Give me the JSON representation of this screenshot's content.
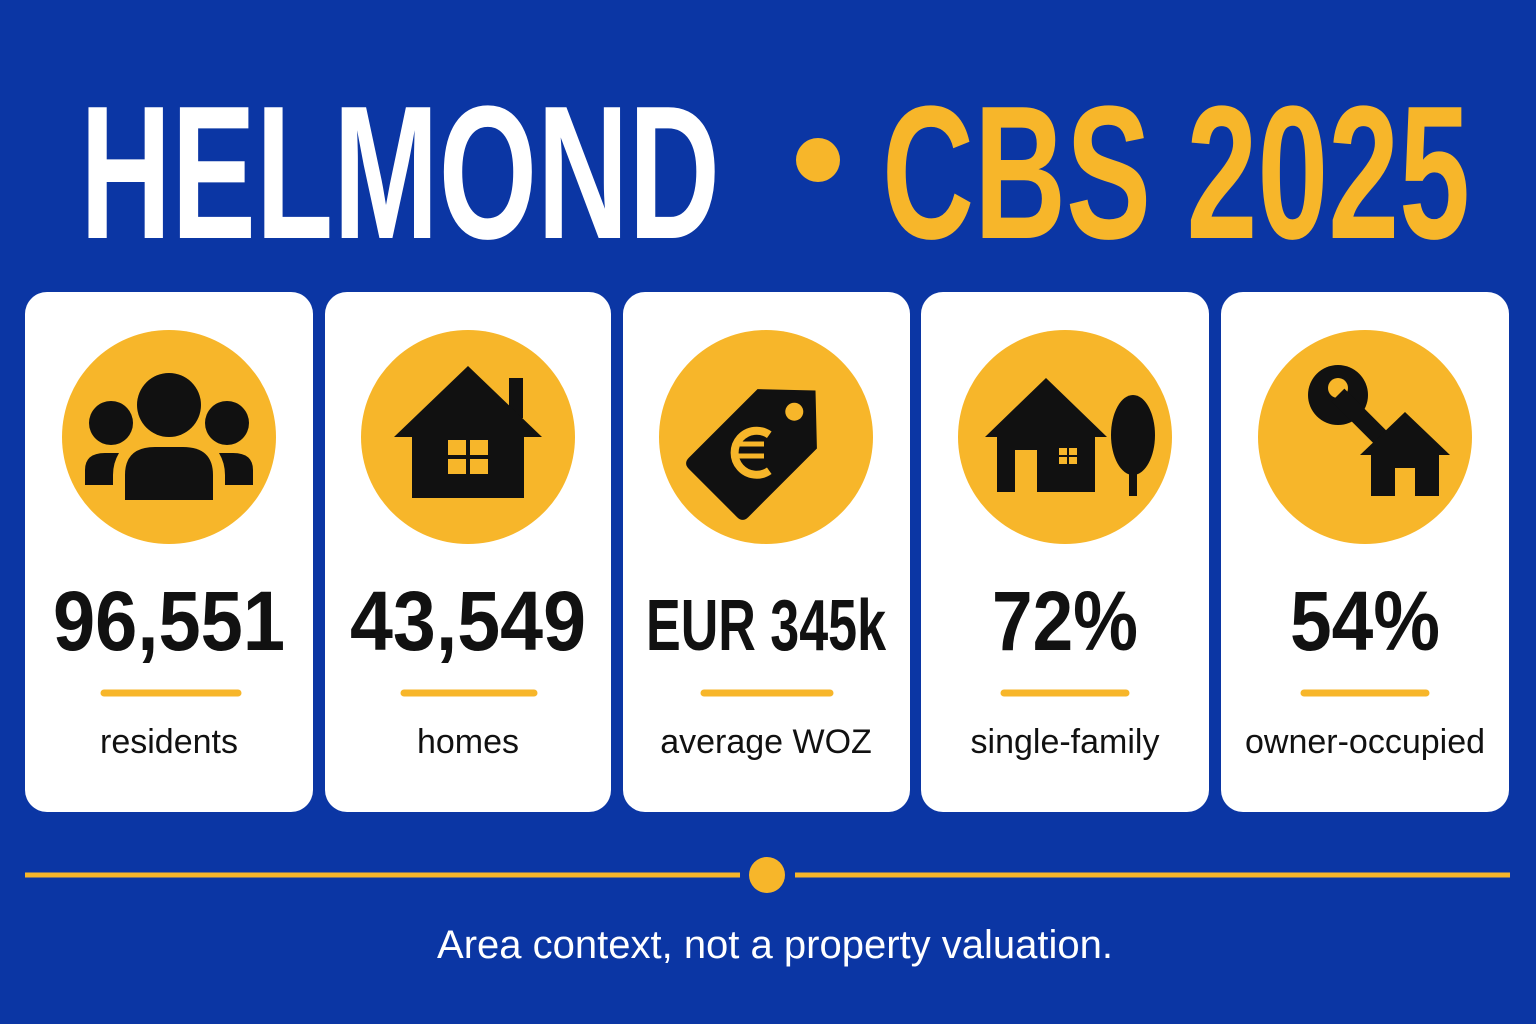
{
  "header": {
    "place": "HELMOND",
    "source": "CBS 2025"
  },
  "cards": [
    {
      "value": "96,551",
      "label": "residents"
    },
    {
      "value": "43,549",
      "label": "homes"
    },
    {
      "value": "EUR 345k",
      "label": "average WOZ"
    },
    {
      "value": "72%",
      "label": "single-family"
    },
    {
      "value": "54%",
      "label": "owner-occupied"
    }
  ],
  "footer": {
    "note": "Area context, not a property valuation."
  }
}
